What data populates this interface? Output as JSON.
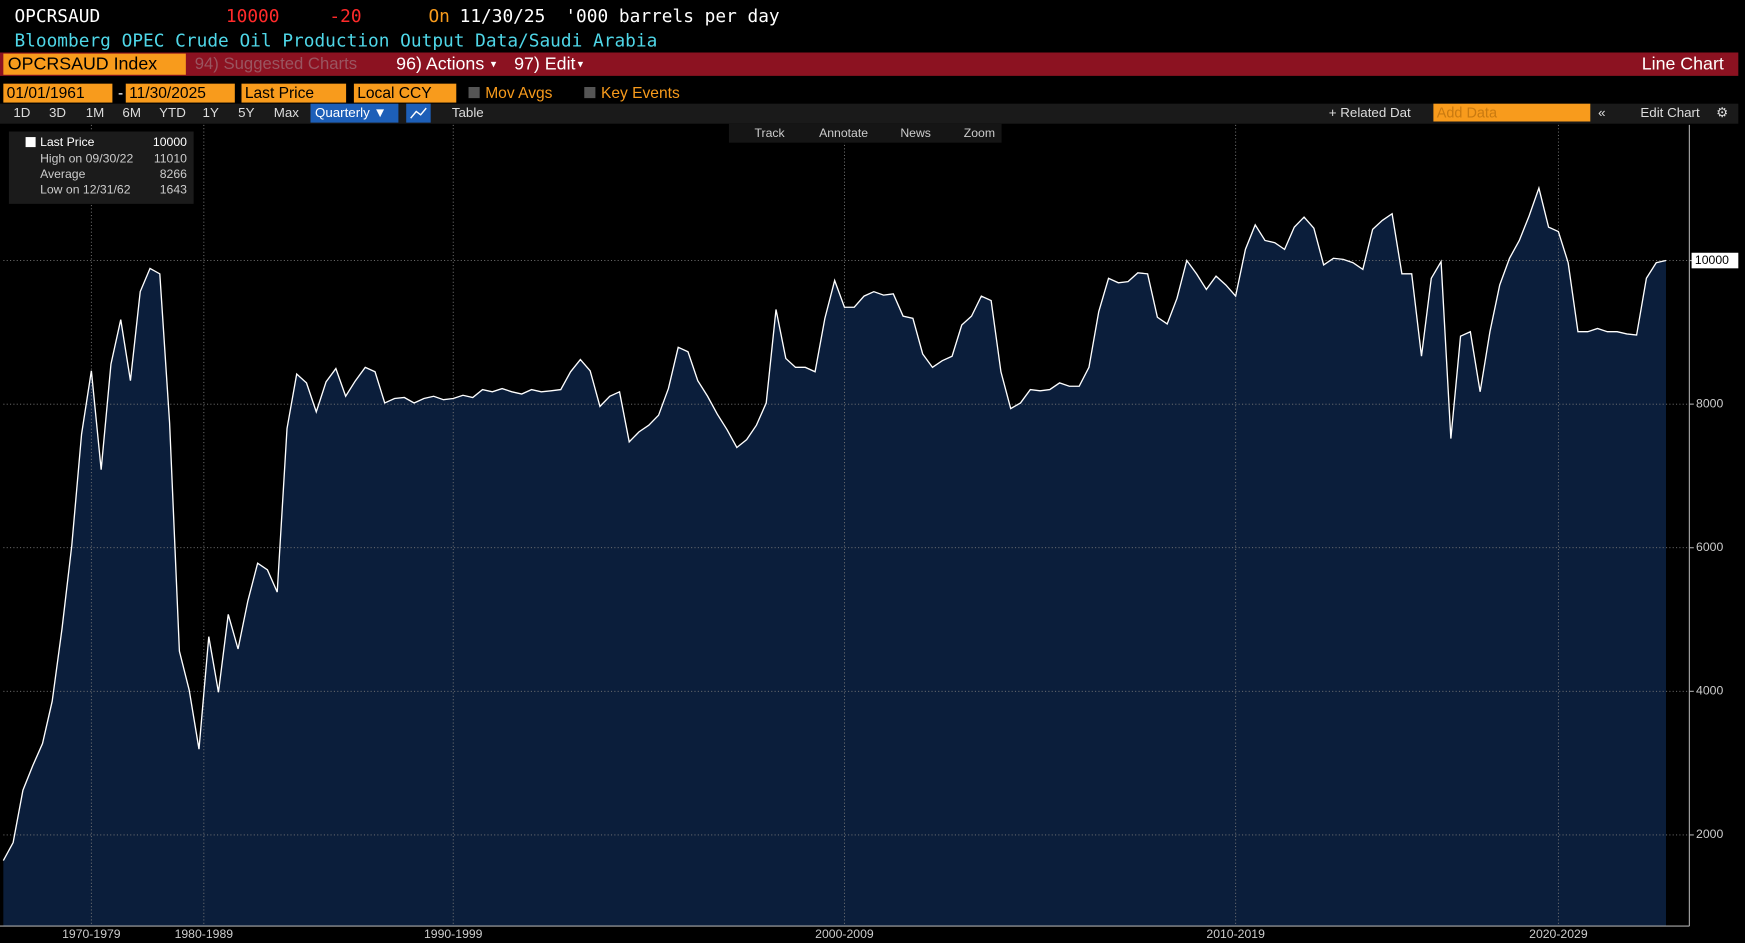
{
  "header": {
    "ticker": "OPCRSAUD",
    "change": "-20",
    "on": "On",
    "date": "11/30/25",
    "units": "'000 barrels per day",
    "description": "Bloomberg OPEC Crude Oil Production Output Data/Saudi Arabia"
  },
  "menu": {
    "security": "OPCRSAUD Index",
    "suggested": "94) Suggested Charts",
    "actions": "96) Actions",
    "edit": "97) Edit",
    "chart_type": "Line Chart"
  },
  "controls": {
    "start": "01/01/1961",
    "dash": "-",
    "end": "11/30/2025",
    "field": "Last Price",
    "currency": "Local CCY",
    "mov_avgs": "Mov Avgs",
    "key_events": "Key Events"
  },
  "periods": [
    "1D",
    "3D",
    "1M",
    "6M",
    "YTD",
    "1Y",
    "5Y",
    "Max"
  ],
  "frequency": "Quarterly ▼",
  "table": "Table",
  "related": "+ Related Dat",
  "add_data": "Add Data",
  "edit_chart": "Edit Chart",
  "tools": [
    "Track",
    "Annotate",
    "News",
    "Zoom"
  ],
  "legend": {
    "high": "High on 09/30/22",
    "average_label": "Average",
    "average": 8266,
    "low": "Low on 12/31/62"
  },
  "chart_data": {
    "type": "area",
    "series": [
      {
        "name": "Last Price",
        "color": "#ffffff",
        "fill": "#0b1e3b",
        "values": [
          1643,
          1894,
          2622,
          2963,
          3273,
          3862,
          4870,
          6032,
          7582,
          8465,
          7086,
          8558,
          9178,
          8326,
          9566,
          9891,
          9814,
          7737,
          4560,
          4017,
          3195,
          4761,
          3986,
          5071,
          4590,
          5257,
          5784,
          5691,
          5381,
          7660,
          8419,
          8295,
          7892,
          8311,
          8496,
          8109,
          8326,
          8512,
          8450,
          8016,
          8078,
          8093,
          8016,
          8078,
          8109,
          8062,
          8078,
          8124,
          8093,
          8202,
          8171,
          8217,
          8171,
          8140,
          8202,
          8171,
          8186,
          8202,
          8450,
          8621,
          8465,
          7969,
          8109,
          8171,
          7474,
          7614,
          7707,
          7846,
          8217,
          8791,
          8729,
          8326,
          8109,
          7861,
          7644,
          7396,
          7505,
          7707,
          8016,
          9318,
          8636,
          8512,
          8512,
          8450,
          9194,
          9721,
          9349,
          9349,
          9504,
          9566,
          9519,
          9535,
          9225,
          9194,
          8698,
          8512,
          8605,
          8667,
          9101,
          9225,
          9504,
          9442,
          8450,
          7938,
          8016,
          8202,
          8186,
          8202,
          8295,
          8249,
          8249,
          8512,
          9287,
          9752,
          9690,
          9706,
          9829,
          9814,
          9210,
          9117,
          9473,
          10000,
          9814,
          9597,
          9783,
          9659,
          9504,
          10155,
          10496,
          10279,
          10248,
          10155,
          10465,
          10605,
          10450,
          9938,
          10031,
          10016,
          9969,
          9876,
          10434,
          10558,
          10651,
          9814,
          9814,
          8667,
          9752,
          9985,
          7520,
          8946,
          9008,
          8171,
          9008,
          9659,
          10031,
          10279,
          10620,
          11010,
          10465,
          10403,
          9969,
          9008,
          9008,
          9054,
          9008,
          9008,
          8977,
          8962,
          9752,
          9969,
          10000
        ]
      }
    ],
    "ylim": [
      730,
      11890
    ],
    "yticks": [
      2000,
      4000,
      6000,
      8000,
      10000
    ],
    "xlim": [
      0,
      170
    ],
    "xticks": [
      {
        "value": 9,
        "label": "1970-1979"
      },
      {
        "value": 20.5,
        "label": "1980-1989"
      },
      {
        "value": 46,
        "label": "1990-1999"
      },
      {
        "value": 86,
        "label": "2000-2009"
      },
      {
        "value": 126,
        "label": "2010-2019"
      },
      {
        "value": 159,
        "label": "2020-2029"
      }
    ],
    "grid": true
  }
}
